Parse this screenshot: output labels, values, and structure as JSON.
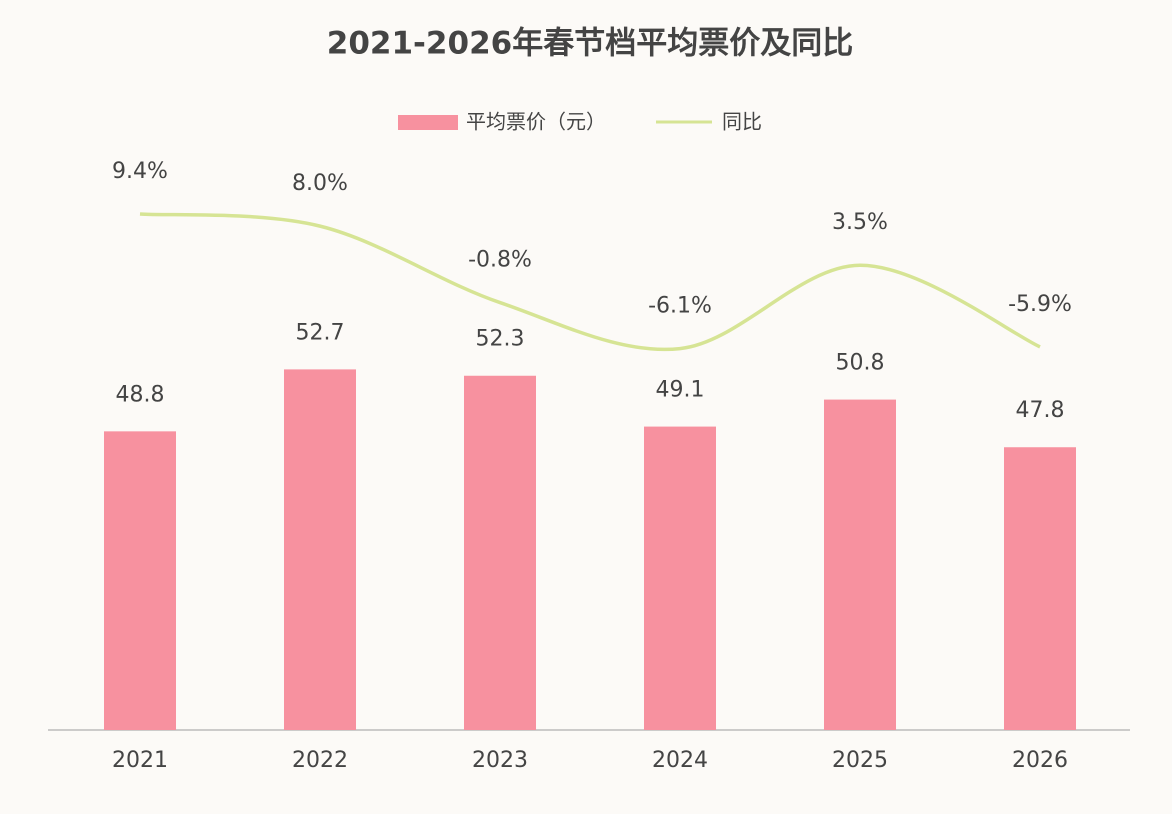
{
  "chart_data": {
    "type": "bar-line",
    "title": "2021-2026年春节档平均票价及同比",
    "categories": [
      "2021",
      "2022",
      "2023",
      "2024",
      "2025",
      "2026"
    ],
    "series": [
      {
        "name": "平均票价（元）",
        "type": "bar",
        "color": "#f7919f",
        "values": [
          48.8,
          52.7,
          52.3,
          49.1,
          50.8,
          47.8
        ]
      },
      {
        "name": "同比",
        "type": "line",
        "axis": "y2",
        "color": "#d6e494",
        "values": [
          9.4,
          8.0,
          -0.8,
          -6.1,
          3.5,
          -5.9
        ],
        "value_labels": [
          "9.4%",
          "8.0%",
          "-0.8%",
          "-6.1%",
          "3.5%",
          "-5.9%"
        ]
      }
    ],
    "ylim": [
      30,
      65
    ],
    "y2lim": [
      -50,
      14
    ]
  }
}
